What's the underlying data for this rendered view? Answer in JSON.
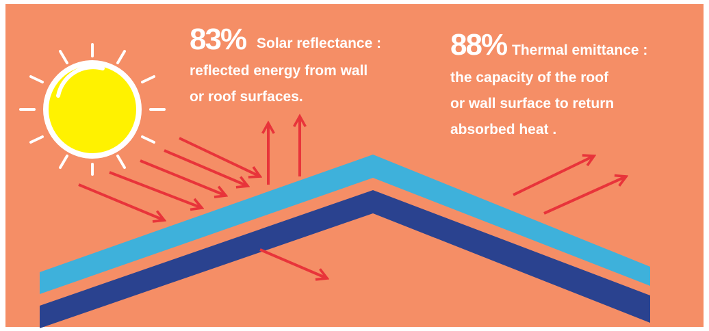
{
  "panels": [
    {
      "stat": "83%",
      "label": "Solar reflectance :",
      "description": [
        "reflected energy from wall",
        "or roof surfaces."
      ]
    },
    {
      "stat": "88%",
      "label": "Thermal emittance :",
      "description": [
        "the capacity of the roof",
        "or wall surface to return",
        "absorbed heat ."
      ]
    }
  ]
}
